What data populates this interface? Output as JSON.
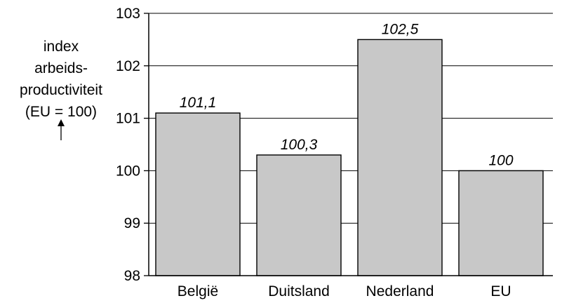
{
  "chart_data": {
    "type": "bar",
    "categories": [
      "België",
      "Duitsland",
      "Nederland",
      "EU"
    ],
    "values": [
      101.1,
      100.3,
      102.5,
      100
    ],
    "data_labels": [
      "101,1",
      "100,3",
      "102,5",
      "100"
    ],
    "ylabel_lines": [
      "index",
      "arbeids-",
      "productiviteit",
      "(EU = 100)"
    ],
    "ylim": [
      98,
      103
    ],
    "yticks": [
      98,
      99,
      100,
      101,
      102,
      103
    ],
    "ytick_labels": [
      "98",
      "99",
      "100",
      "101",
      "102",
      "103"
    ],
    "grid": true,
    "bar_color": "#c8c8c8",
    "bar_outline_color": "#000000"
  }
}
